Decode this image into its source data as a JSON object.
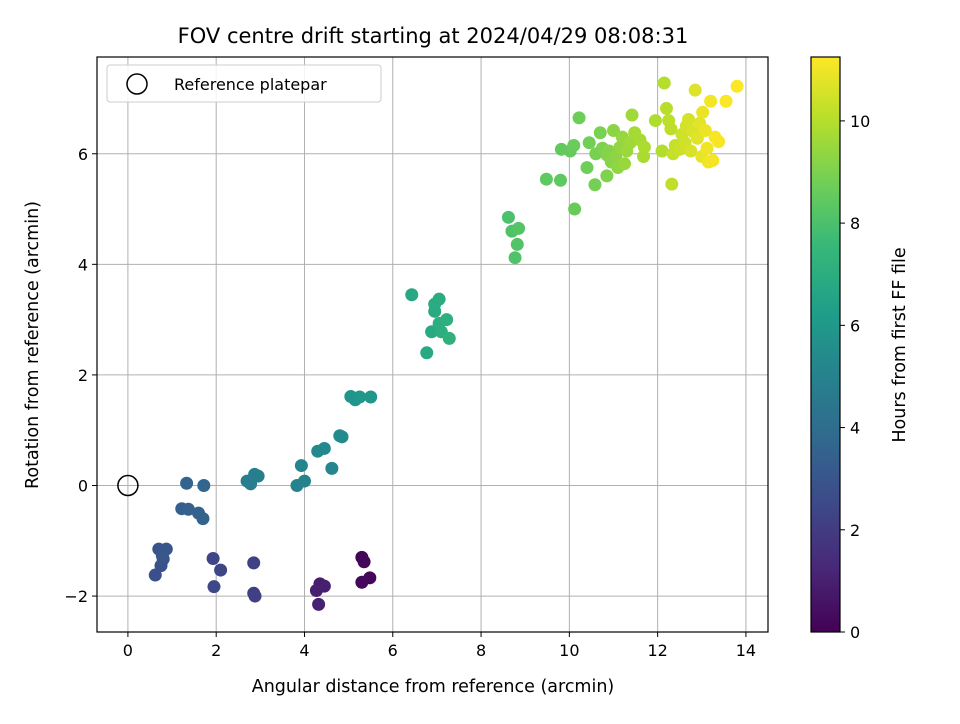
{
  "chart_data": {
    "type": "scatter",
    "title": "FOV centre drift starting at 2024/04/29 08:08:31",
    "xlabel": "Angular distance from reference (arcmin)",
    "ylabel": "Rotation from reference (arcmin)",
    "colorbar_label": "Hours from first FF file",
    "xlim": [
      -0.7,
      14.5
    ],
    "ylim": [
      -2.65,
      7.75
    ],
    "x_ticks": [
      0,
      2,
      4,
      6,
      8,
      10,
      12,
      14
    ],
    "y_ticks": [
      -2,
      0,
      2,
      4,
      6
    ],
    "colorbar_range": [
      0,
      11.25
    ],
    "colorbar_ticks": [
      0,
      2,
      4,
      6,
      8,
      10
    ],
    "grid": true,
    "legend": {
      "position": "top-left",
      "label": "Reference platepar"
    },
    "reference_point": {
      "x": 0,
      "y": 0
    },
    "colormap": [
      "#440154",
      "#482878",
      "#3e4989",
      "#31688e",
      "#26828e",
      "#1f9e89",
      "#35b779",
      "#6ece58",
      "#b5de2b",
      "#fde725"
    ],
    "points": [
      {
        "x": 5.3,
        "y": -1.3,
        "h": 0.1
      },
      {
        "x": 5.35,
        "y": -1.38,
        "h": 0.15
      },
      {
        "x": 5.48,
        "y": -1.67,
        "h": 0.2
      },
      {
        "x": 5.3,
        "y": -1.75,
        "h": 0.25
      },
      {
        "x": 4.35,
        "y": -1.78,
        "h": 0.9
      },
      {
        "x": 4.45,
        "y": -1.82,
        "h": 0.95
      },
      {
        "x": 4.27,
        "y": -1.9,
        "h": 1.0
      },
      {
        "x": 4.32,
        "y": -2.15,
        "h": 1.05
      },
      {
        "x": 2.85,
        "y": -1.95,
        "h": 2.1
      },
      {
        "x": 2.88,
        "y": -2.0,
        "h": 2.15
      },
      {
        "x": 2.85,
        "y": -1.4,
        "h": 2.2
      },
      {
        "x": 1.93,
        "y": -1.32,
        "h": 2.35
      },
      {
        "x": 2.1,
        "y": -1.53,
        "h": 2.4
      },
      {
        "x": 1.95,
        "y": -1.83,
        "h": 2.45
      },
      {
        "x": 0.62,
        "y": -1.62,
        "h": 2.8
      },
      {
        "x": 0.75,
        "y": -1.45,
        "h": 2.85
      },
      {
        "x": 0.8,
        "y": -1.33,
        "h": 2.9
      },
      {
        "x": 0.7,
        "y": -1.15,
        "h": 2.95
      },
      {
        "x": 0.87,
        "y": -1.15,
        "h": 3.0
      },
      {
        "x": 0.78,
        "y": -1.27,
        "h": 3.05
      },
      {
        "x": 1.22,
        "y": -0.42,
        "h": 3.4
      },
      {
        "x": 1.37,
        "y": -0.43,
        "h": 3.45
      },
      {
        "x": 1.6,
        "y": -0.5,
        "h": 3.5
      },
      {
        "x": 1.7,
        "y": -0.6,
        "h": 3.55
      },
      {
        "x": 1.33,
        "y": 0.04,
        "h": 3.6
      },
      {
        "x": 1.72,
        "y": 0.0,
        "h": 3.65
      },
      {
        "x": 2.7,
        "y": 0.08,
        "h": 4.7
      },
      {
        "x": 2.78,
        "y": 0.03,
        "h": 4.75
      },
      {
        "x": 2.87,
        "y": 0.2,
        "h": 4.8
      },
      {
        "x": 2.95,
        "y": 0.17,
        "h": 4.85
      },
      {
        "x": 3.83,
        "y": 0.0,
        "h": 5.0
      },
      {
        "x": 4.0,
        "y": 0.08,
        "h": 5.05
      },
      {
        "x": 3.93,
        "y": 0.36,
        "h": 5.1
      },
      {
        "x": 4.62,
        "y": 0.31,
        "h": 5.2
      },
      {
        "x": 4.3,
        "y": 0.62,
        "h": 5.25
      },
      {
        "x": 4.45,
        "y": 0.67,
        "h": 5.3
      },
      {
        "x": 4.8,
        "y": 0.9,
        "h": 5.35
      },
      {
        "x": 4.85,
        "y": 0.88,
        "h": 5.4
      },
      {
        "x": 5.05,
        "y": 1.61,
        "h": 5.8
      },
      {
        "x": 5.15,
        "y": 1.55,
        "h": 5.85
      },
      {
        "x": 5.25,
        "y": 1.6,
        "h": 5.9
      },
      {
        "x": 5.5,
        "y": 1.6,
        "h": 5.95
      },
      {
        "x": 6.43,
        "y": 3.45,
        "h": 6.7
      },
      {
        "x": 6.77,
        "y": 2.4,
        "h": 6.75
      },
      {
        "x": 6.88,
        "y": 2.78,
        "h": 6.8
      },
      {
        "x": 6.95,
        "y": 3.15,
        "h": 6.85
      },
      {
        "x": 6.95,
        "y": 3.28,
        "h": 6.9
      },
      {
        "x": 7.05,
        "y": 3.37,
        "h": 6.95
      },
      {
        "x": 7.05,
        "y": 2.93,
        "h": 7.0
      },
      {
        "x": 7.1,
        "y": 2.78,
        "h": 7.05
      },
      {
        "x": 7.22,
        "y": 3.0,
        "h": 7.1
      },
      {
        "x": 7.28,
        "y": 2.66,
        "h": 7.15
      },
      {
        "x": 8.62,
        "y": 4.85,
        "h": 8.0
      },
      {
        "x": 8.7,
        "y": 4.6,
        "h": 8.05
      },
      {
        "x": 8.77,
        "y": 4.12,
        "h": 8.1
      },
      {
        "x": 8.82,
        "y": 4.36,
        "h": 8.15
      },
      {
        "x": 8.85,
        "y": 4.65,
        "h": 8.2
      },
      {
        "x": 9.48,
        "y": 5.54,
        "h": 8.4
      },
      {
        "x": 9.8,
        "y": 5.52,
        "h": 8.45
      },
      {
        "x": 9.82,
        "y": 6.08,
        "h": 8.5
      },
      {
        "x": 10.02,
        "y": 6.05,
        "h": 8.55
      },
      {
        "x": 10.12,
        "y": 5.0,
        "h": 8.6
      },
      {
        "x": 10.1,
        "y": 6.15,
        "h": 8.65
      },
      {
        "x": 10.22,
        "y": 6.65,
        "h": 8.7
      },
      {
        "x": 10.4,
        "y": 5.75,
        "h": 8.75
      },
      {
        "x": 10.45,
        "y": 6.2,
        "h": 8.8
      },
      {
        "x": 10.58,
        "y": 5.44,
        "h": 8.85
      },
      {
        "x": 10.6,
        "y": 6.0,
        "h": 8.9
      },
      {
        "x": 10.7,
        "y": 6.38,
        "h": 8.95
      },
      {
        "x": 10.75,
        "y": 6.1,
        "h": 9.0
      },
      {
        "x": 10.85,
        "y": 5.6,
        "h": 9.05
      },
      {
        "x": 10.85,
        "y": 5.98,
        "h": 9.1
      },
      {
        "x": 10.9,
        "y": 6.05,
        "h": 9.15
      },
      {
        "x": 10.95,
        "y": 5.85,
        "h": 9.2
      },
      {
        "x": 11.0,
        "y": 6.42,
        "h": 9.25
      },
      {
        "x": 11.05,
        "y": 5.95,
        "h": 9.3
      },
      {
        "x": 11.1,
        "y": 5.75,
        "h": 9.35
      },
      {
        "x": 11.15,
        "y": 6.12,
        "h": 9.4
      },
      {
        "x": 11.2,
        "y": 6.3,
        "h": 9.45
      },
      {
        "x": 11.25,
        "y": 5.82,
        "h": 9.5
      },
      {
        "x": 11.3,
        "y": 6.05,
        "h": 9.55
      },
      {
        "x": 11.38,
        "y": 6.2,
        "h": 9.6
      },
      {
        "x": 11.42,
        "y": 6.7,
        "h": 9.65
      },
      {
        "x": 11.48,
        "y": 6.38,
        "h": 9.7
      },
      {
        "x": 11.6,
        "y": 6.25,
        "h": 9.75
      },
      {
        "x": 11.68,
        "y": 5.95,
        "h": 9.8
      },
      {
        "x": 11.7,
        "y": 6.12,
        "h": 9.85
      },
      {
        "x": 11.95,
        "y": 6.6,
        "h": 9.9
      },
      {
        "x": 12.1,
        "y": 6.05,
        "h": 9.95
      },
      {
        "x": 12.15,
        "y": 7.28,
        "h": 10.0
      },
      {
        "x": 12.2,
        "y": 6.82,
        "h": 10.05
      },
      {
        "x": 12.25,
        "y": 6.6,
        "h": 10.1
      },
      {
        "x": 12.3,
        "y": 6.45,
        "h": 10.15
      },
      {
        "x": 12.32,
        "y": 5.45,
        "h": 10.2
      },
      {
        "x": 12.35,
        "y": 6.0,
        "h": 10.25
      },
      {
        "x": 12.4,
        "y": 6.15,
        "h": 10.3
      },
      {
        "x": 12.5,
        "y": 6.08,
        "h": 10.35
      },
      {
        "x": 12.55,
        "y": 6.35,
        "h": 10.4
      },
      {
        "x": 12.62,
        "y": 6.2,
        "h": 10.45
      },
      {
        "x": 12.65,
        "y": 6.5,
        "h": 10.5
      },
      {
        "x": 12.7,
        "y": 6.62,
        "h": 10.55
      },
      {
        "x": 12.75,
        "y": 6.05,
        "h": 10.6
      },
      {
        "x": 12.8,
        "y": 6.4,
        "h": 10.65
      },
      {
        "x": 12.85,
        "y": 7.15,
        "h": 10.7
      },
      {
        "x": 12.9,
        "y": 6.28,
        "h": 10.75
      },
      {
        "x": 12.95,
        "y": 6.55,
        "h": 10.8
      },
      {
        "x": 13.0,
        "y": 5.95,
        "h": 10.85
      },
      {
        "x": 13.02,
        "y": 6.75,
        "h": 10.9
      },
      {
        "x": 13.08,
        "y": 6.42,
        "h": 10.95
      },
      {
        "x": 13.12,
        "y": 6.1,
        "h": 11.0
      },
      {
        "x": 13.15,
        "y": 5.85,
        "h": 11.05
      },
      {
        "x": 13.2,
        "y": 6.95,
        "h": 11.08
      },
      {
        "x": 13.25,
        "y": 5.88,
        "h": 11.1
      },
      {
        "x": 13.3,
        "y": 6.3,
        "h": 11.13
      },
      {
        "x": 13.38,
        "y": 6.22,
        "h": 11.16
      },
      {
        "x": 13.55,
        "y": 6.95,
        "h": 11.2
      },
      {
        "x": 13.8,
        "y": 7.22,
        "h": 11.24
      }
    ]
  }
}
